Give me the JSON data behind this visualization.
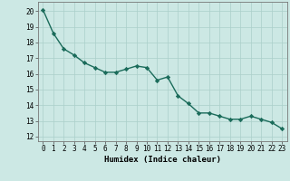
{
  "x": [
    0,
    1,
    2,
    3,
    4,
    5,
    6,
    7,
    8,
    9,
    10,
    11,
    12,
    13,
    14,
    15,
    16,
    17,
    18,
    19,
    20,
    21,
    22,
    23
  ],
  "y": [
    20.1,
    18.6,
    17.6,
    17.2,
    16.7,
    16.4,
    16.1,
    16.1,
    16.3,
    16.5,
    16.4,
    15.6,
    15.8,
    14.6,
    14.1,
    13.5,
    13.5,
    13.3,
    13.1,
    13.1,
    13.3,
    13.1,
    12.9,
    12.5
  ],
  "line_color": "#1a6b5a",
  "marker": "D",
  "marker_size": 2.2,
  "bg_color": "#cce8e4",
  "grid_color": "#aacfca",
  "xlabel": "Humidex (Indice chaleur)",
  "xlim": [
    -0.5,
    23.5
  ],
  "ylim": [
    11.7,
    20.6
  ],
  "yticks": [
    12,
    13,
    14,
    15,
    16,
    17,
    18,
    19,
    20
  ],
  "xticks": [
    0,
    1,
    2,
    3,
    4,
    5,
    6,
    7,
    8,
    9,
    10,
    11,
    12,
    13,
    14,
    15,
    16,
    17,
    18,
    19,
    20,
    21,
    22,
    23
  ],
  "tick_fontsize": 5.5,
  "label_fontsize": 6.5,
  "line_width": 1.0
}
